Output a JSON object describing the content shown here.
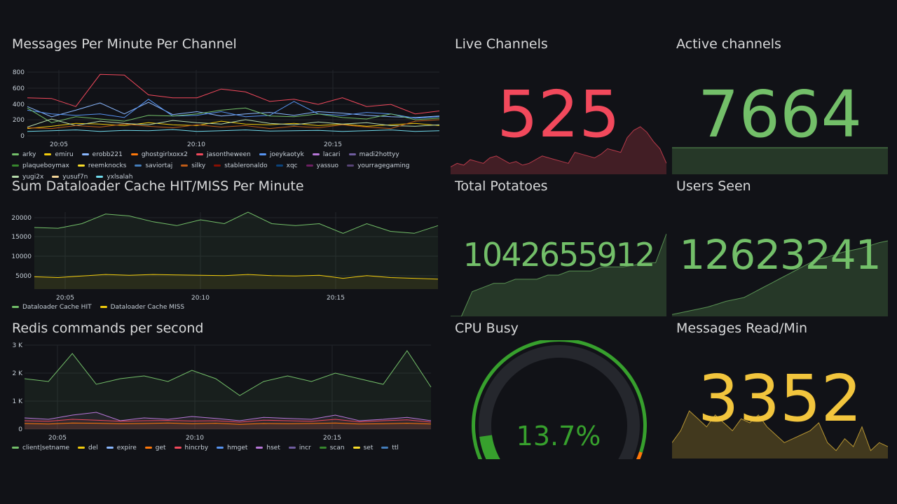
{
  "panels": {
    "messages": {
      "title": "Messages Per Minute Per Channel",
      "yticks": [
        "800",
        "600",
        "400",
        "200",
        "0"
      ],
      "xticks": [
        "20:05",
        "20:10",
        "20:15"
      ],
      "legend": [
        {
          "name": "arky",
          "color": "#73bf69"
        },
        {
          "name": "emiru",
          "color": "#f2cc0c"
        },
        {
          "name": "erobb221",
          "color": "#8ab8ff"
        },
        {
          "name": "ghostgirlxoxx2",
          "color": "#ff780a"
        },
        {
          "name": "jasontheween",
          "color": "#f2495c"
        },
        {
          "name": "joeykaotyk",
          "color": "#5794f2"
        },
        {
          "name": "lacari",
          "color": "#b877d9"
        },
        {
          "name": "madi2hottyy",
          "color": "#705da0"
        },
        {
          "name": "plaqueboymax",
          "color": "#37872d"
        },
        {
          "name": "reemknocks",
          "color": "#fade2a"
        },
        {
          "name": "saviortaj",
          "color": "#447ebc"
        },
        {
          "name": "silky",
          "color": "#c15c17"
        },
        {
          "name": "stableronaldo",
          "color": "#890f02"
        },
        {
          "name": "xqc",
          "color": "#0a437c"
        },
        {
          "name": "yassuo",
          "color": "#6d1f62"
        },
        {
          "name": "yourragegaming",
          "color": "#584477"
        },
        {
          "name": "yugi2x",
          "color": "#b7dbab"
        },
        {
          "name": "yusuf7n",
          "color": "#f4d598"
        },
        {
          "name": "yxlsalah",
          "color": "#70dbed"
        }
      ]
    },
    "cache": {
      "title": "Sum Dataloader Cache HIT/MISS Per Minute",
      "yticks": [
        "20000",
        "15000",
        "10000",
        "5000"
      ],
      "xticks": [
        "20:05",
        "20:10",
        "20:15"
      ],
      "legend": [
        {
          "name": "Dataloader Cache HIT",
          "color": "#73bf69"
        },
        {
          "name": "Dataloader Cache MISS",
          "color": "#f2cc0c"
        }
      ]
    },
    "redis": {
      "title": "Redis commands per second",
      "yticks": [
        "3 K",
        "2 K",
        "1 K",
        "0"
      ],
      "xticks": [
        "20:05",
        "20:10",
        "20:15"
      ],
      "legend": [
        {
          "name": "client|setname",
          "color": "#73bf69"
        },
        {
          "name": "del",
          "color": "#f2cc0c"
        },
        {
          "name": "expire",
          "color": "#8ab8ff"
        },
        {
          "name": "get",
          "color": "#ff780a"
        },
        {
          "name": "hincrby",
          "color": "#f2495c"
        },
        {
          "name": "hmget",
          "color": "#5794f2"
        },
        {
          "name": "hset",
          "color": "#b877d9"
        },
        {
          "name": "incr",
          "color": "#705da0"
        },
        {
          "name": "scan",
          "color": "#37872d"
        },
        {
          "name": "set",
          "color": "#fade2a"
        },
        {
          "name": "ttl",
          "color": "#447ebc"
        }
      ]
    },
    "live_channels": {
      "title": "Live Channels",
      "value": "525",
      "color": "#f2495c"
    },
    "active_channels": {
      "title": "Active channels",
      "value": "7664",
      "color": "#73bf69"
    },
    "total_potatoes": {
      "title": "Total Potatoes",
      "value": "1042655912",
      "color": "#73bf69"
    },
    "users_seen": {
      "title": "Users Seen",
      "value": "12623241",
      "color": "#73bf69"
    },
    "cpu_busy": {
      "title": "CPU Busy",
      "value": "13.7%",
      "percent": 13.7,
      "color": "#37a02d"
    },
    "messages_read": {
      "title": "Messages Read/Min",
      "value": "3352",
      "color": "#f2c53d"
    }
  },
  "chart_data": [
    {
      "type": "line",
      "title": "Messages Per Minute Per Channel",
      "x": [
        "20:02",
        "20:03",
        "20:04",
        "20:05",
        "20:06",
        "20:07",
        "20:08",
        "20:09",
        "20:10",
        "20:11",
        "20:12",
        "20:13",
        "20:14",
        "20:15",
        "20:16",
        "20:17",
        "20:18",
        "20:19"
      ],
      "ylim": [
        0,
        900
      ],
      "series": [
        {
          "name": "jasontheween",
          "values": [
            520,
            510,
            400,
            840,
            830,
            560,
            520,
            520,
            640,
            600,
            470,
            500,
            430,
            520,
            400,
            430,
            300,
            340
          ]
        },
        {
          "name": "erobb221",
          "values": [
            400,
            260,
            350,
            450,
            300,
            460,
            290,
            330,
            270,
            300,
            320,
            280,
            330,
            310,
            280,
            260,
            250,
            270
          ]
        },
        {
          "name": "joeykaotyk",
          "values": [
            350,
            300,
            280,
            300,
            250,
            500,
            270,
            280,
            330,
            260,
            280,
            470,
            300,
            280,
            320,
            300,
            240,
            260
          ]
        },
        {
          "name": "arky",
          "values": [
            380,
            180,
            260,
            230,
            200,
            280,
            270,
            300,
            350,
            380,
            270,
            260,
            300,
            250,
            230,
            300,
            220,
            240
          ]
        },
        {
          "name": "emiru",
          "values": [
            100,
            130,
            170,
            160,
            140,
            180,
            150,
            140,
            200,
            160,
            150,
            170,
            140,
            160,
            130,
            150,
            170,
            140
          ]
        },
        {
          "name": "yugi2x",
          "values": [
            120,
            230,
            140,
            200,
            170,
            150,
            210,
            180,
            160,
            220,
            170,
            150,
            190,
            160,
            180,
            140,
            130,
            150
          ]
        },
        {
          "name": "yxlsalah",
          "values": [
            60,
            70,
            80,
            60,
            75,
            70,
            85,
            60,
            70,
            80,
            65,
            70,
            75,
            60,
            70,
            80,
            60,
            70
          ]
        },
        {
          "name": "silky",
          "values": [
            110,
            100,
            140,
            120,
            160,
            130,
            110,
            150,
            120,
            140,
            100,
            130,
            110,
            150,
            120,
            100,
            200,
            220
          ]
        }
      ]
    },
    {
      "type": "area",
      "title": "Sum Dataloader Cache HIT/MISS Per Minute",
      "x": [
        "20:02",
        "20:03",
        "20:04",
        "20:05",
        "20:06",
        "20:07",
        "20:08",
        "20:09",
        "20:10",
        "20:11",
        "20:12",
        "20:13",
        "20:14",
        "20:15",
        "20:16",
        "20:17",
        "20:18",
        "20:19"
      ],
      "ylim": [
        2000,
        22000
      ],
      "series": [
        {
          "name": "Dataloader Cache HIT",
          "values": [
            18000,
            17800,
            19000,
            21500,
            21000,
            19500,
            18500,
            20000,
            19000,
            22000,
            19000,
            18500,
            19000,
            16500,
            19000,
            17000,
            16500,
            18500
          ]
        },
        {
          "name": "Dataloader Cache MISS",
          "values": [
            5200,
            5000,
            5400,
            5800,
            5600,
            5800,
            5700,
            5600,
            5500,
            5800,
            5500,
            5400,
            5600,
            4800,
            5500,
            5000,
            4800,
            4600
          ]
        }
      ]
    },
    {
      "type": "area",
      "title": "Redis commands per second",
      "x": [
        "20:02",
        "20:03",
        "20:04",
        "20:05",
        "20:06",
        "20:07",
        "20:08",
        "20:09",
        "20:10",
        "20:11",
        "20:12",
        "20:13",
        "20:14",
        "20:15",
        "20:16",
        "20:17",
        "20:18",
        "20:19"
      ],
      "ylim": [
        0,
        3000
      ],
      "series": [
        {
          "name": "client|setname",
          "values": [
            1800,
            1700,
            2700,
            1600,
            1800,
            1900,
            1700,
            2100,
            1800,
            1200,
            1700,
            1900,
            1700,
            2000,
            1800,
            1600,
            2800,
            1500
          ]
        },
        {
          "name": "hset",
          "values": [
            400,
            350,
            500,
            600,
            300,
            400,
            350,
            450,
            380,
            300,
            420,
            380,
            350,
            500,
            300,
            350,
            420,
            300
          ]
        },
        {
          "name": "hincrby",
          "values": [
            300,
            280,
            350,
            320,
            280,
            300,
            310,
            290,
            300,
            250,
            320,
            300,
            280,
            350,
            260,
            300,
            330,
            250
          ]
        },
        {
          "name": "get",
          "values": [
            200,
            180,
            220,
            210,
            190,
            200,
            220,
            190,
            210,
            170,
            200,
            190,
            200,
            220,
            180,
            190,
            210,
            180
          ]
        }
      ]
    },
    {
      "type": "area",
      "title": "Live Channels",
      "values": [
        20,
        30,
        25,
        40,
        35,
        30,
        45,
        50,
        40,
        30,
        35,
        25,
        30,
        40,
        50,
        45,
        40,
        35,
        30,
        60,
        55,
        50,
        45,
        55,
        70,
        65,
        60,
        100,
        120,
        130,
        115,
        90,
        70,
        30
      ]
    },
    {
      "type": "area",
      "title": "Active channels",
      "values": [
        7664,
        7664,
        7664,
        7664
      ]
    },
    {
      "type": "area",
      "title": "Total Potatoes",
      "values": [
        0,
        0,
        30,
        35,
        40,
        40,
        45,
        45,
        45,
        50,
        50,
        55,
        55,
        55,
        60,
        60,
        60,
        62,
        65,
        65,
        100
      ]
    },
    {
      "type": "area",
      "title": "Users Seen",
      "values": [
        2,
        4,
        6,
        8,
        10,
        13,
        16,
        18,
        20,
        25,
        30,
        35,
        40,
        45,
        50,
        55,
        60,
        62,
        65,
        68,
        70,
        72,
        75,
        78,
        80
      ]
    },
    {
      "type": "area",
      "title": "Messages Read/Min",
      "values": [
        20,
        35,
        60,
        50,
        40,
        55,
        45,
        35,
        50,
        45,
        55,
        40,
        30,
        20,
        25,
        30,
        35,
        45,
        20,
        10,
        25,
        15,
        40,
        10,
        20,
        15
      ]
    }
  ]
}
